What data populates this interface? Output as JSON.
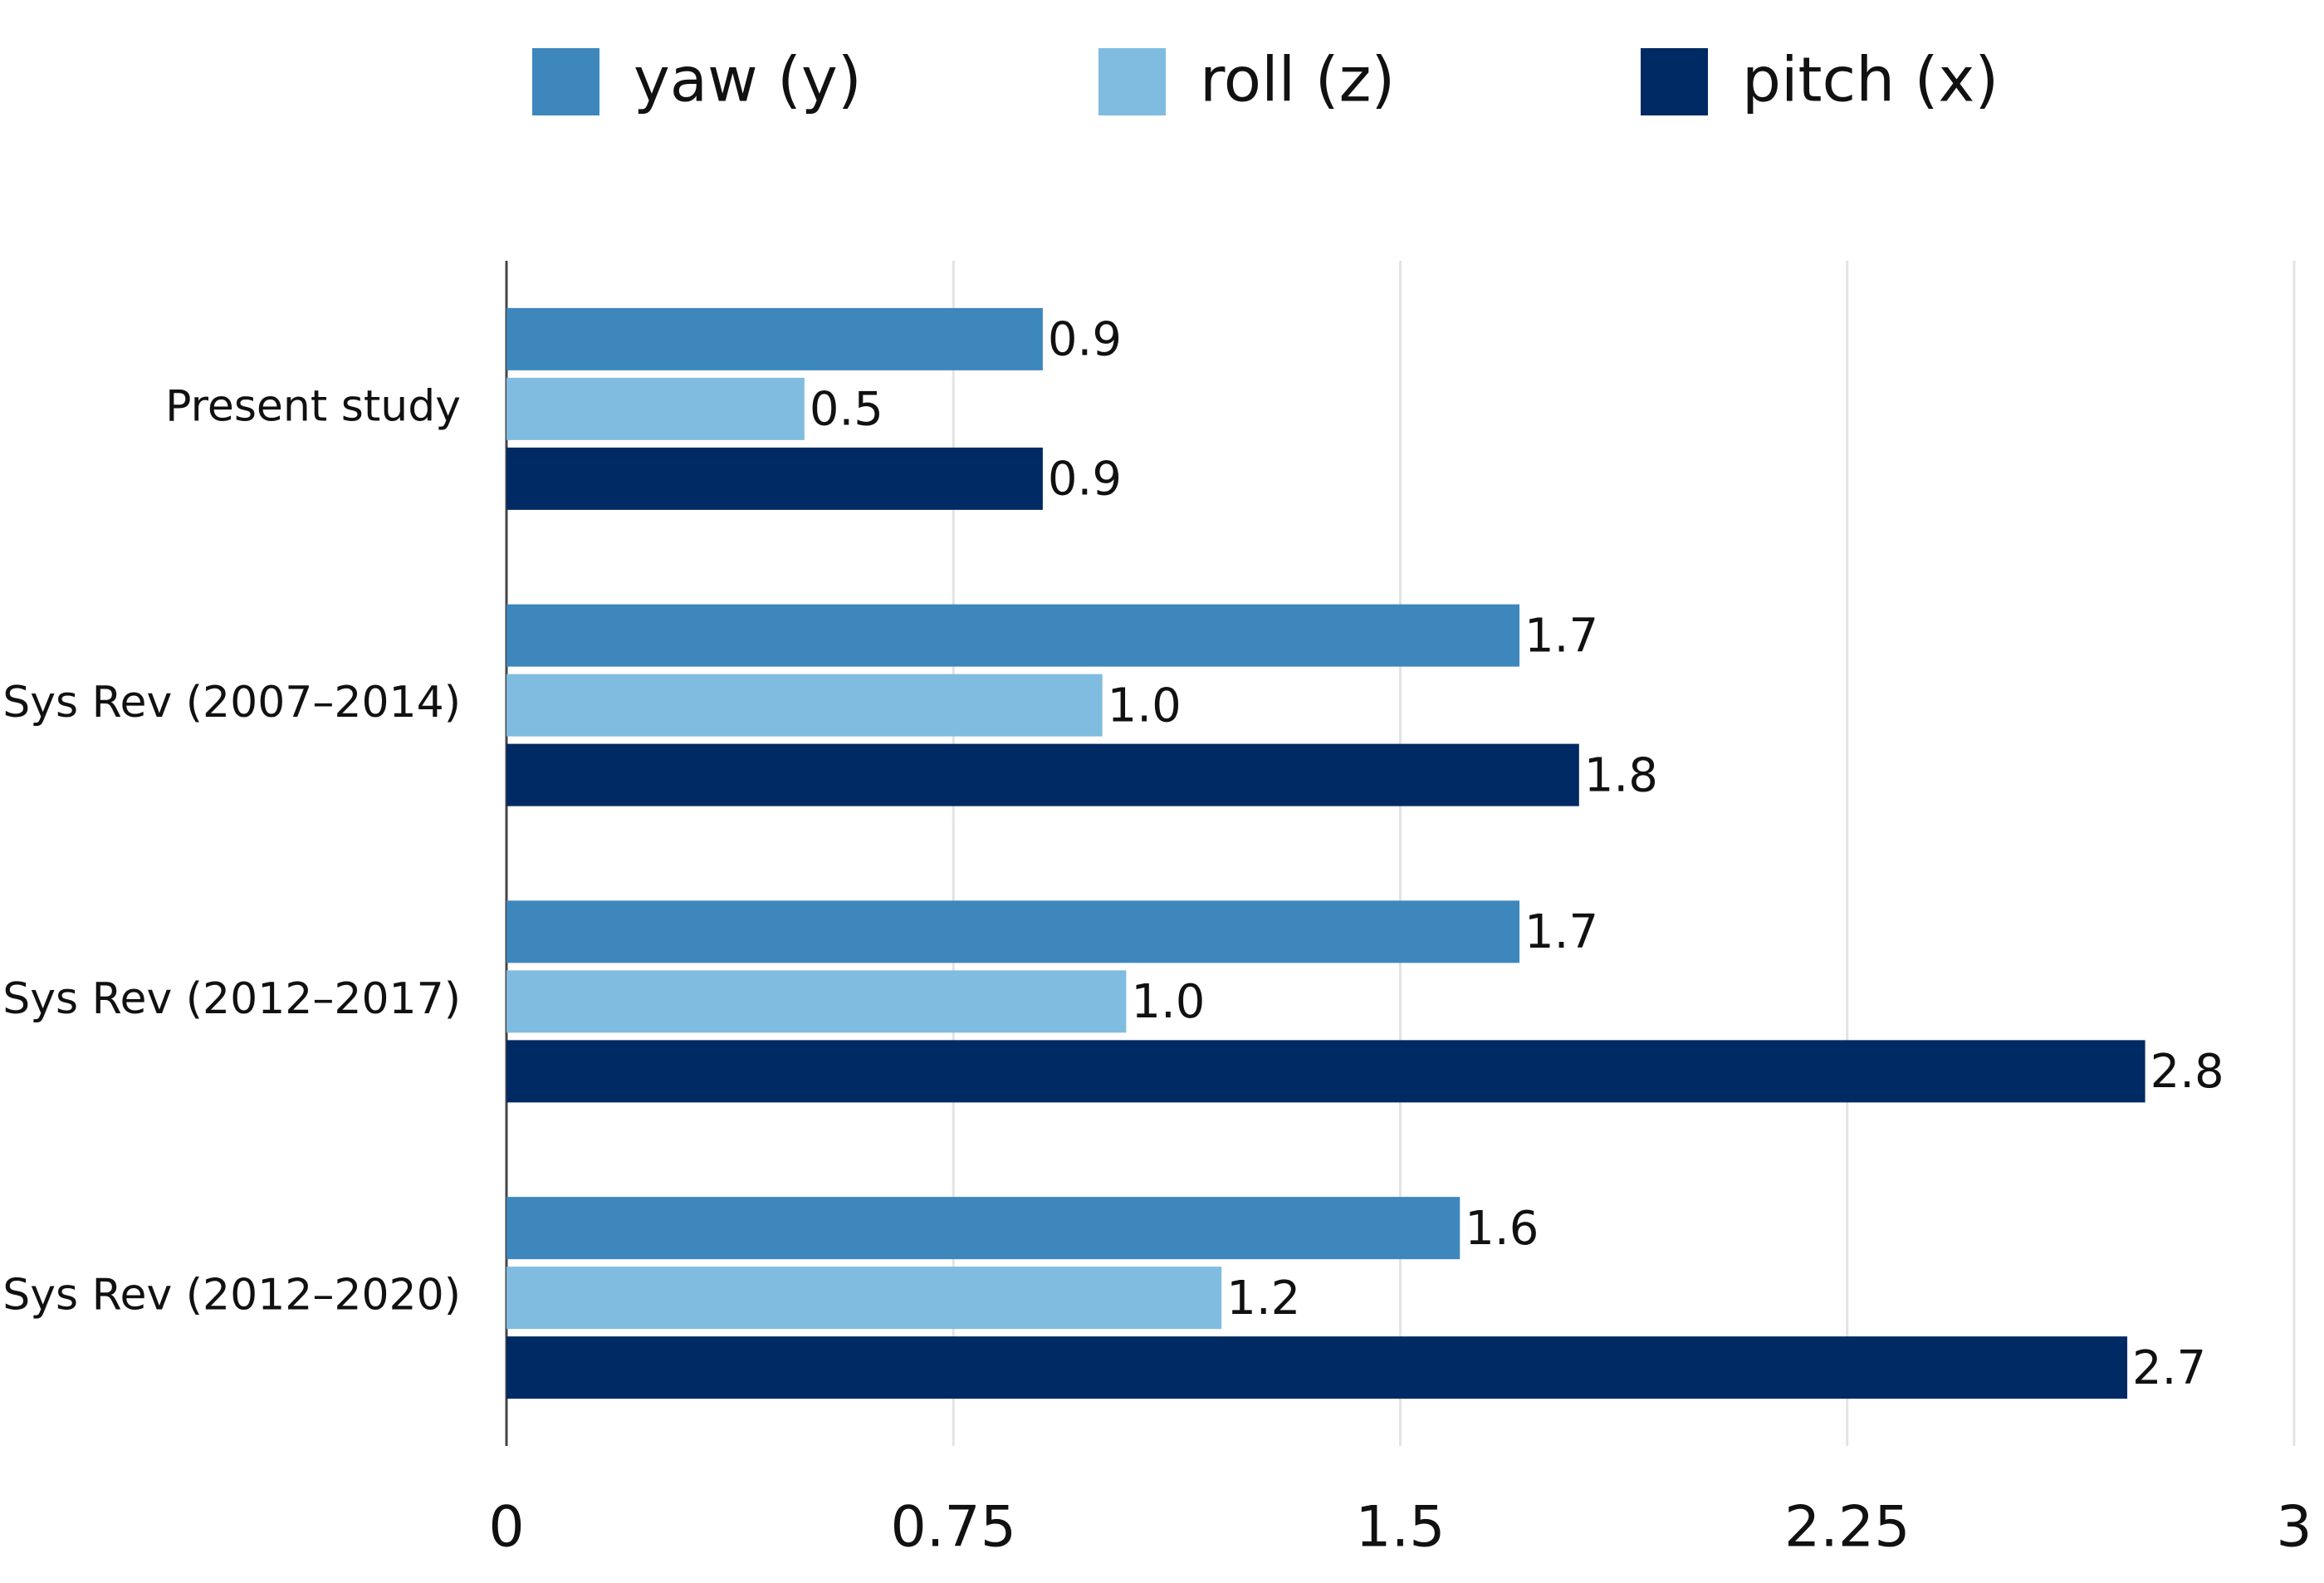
{
  "chart_data": {
    "type": "bar",
    "orientation": "horizontal",
    "categories": [
      "Present study",
      "Sys Rev (2007–2014)",
      "Sys Rev (2012–2017)",
      "Sys Rev (2012–2020)"
    ],
    "series": [
      {
        "name": "yaw (y)",
        "color": "#3d87bd",
        "values": [
          0.9,
          1.7,
          1.7,
          1.6
        ],
        "value_labels": [
          "0.9",
          "1.7",
          "1.7",
          "1.6"
        ]
      },
      {
        "name": "roll (z)",
        "color": "#80bcdf",
        "values": [
          0.5,
          1.0,
          1.04,
          1.2
        ],
        "value_labels": [
          "0.5",
          "1.0",
          "1.0",
          "1.2"
        ]
      },
      {
        "name": "pitch (x)",
        "color": "#002a63",
        "values": [
          0.9,
          1.8,
          2.75,
          2.72
        ],
        "value_labels": [
          "0.9",
          "1.8",
          "2.8",
          "2.7"
        ]
      }
    ],
    "xlim": [
      0,
      3
    ],
    "xticks": [
      0,
      0.75,
      1.5,
      2.25,
      3
    ],
    "grid": true,
    "legend": "top"
  }
}
